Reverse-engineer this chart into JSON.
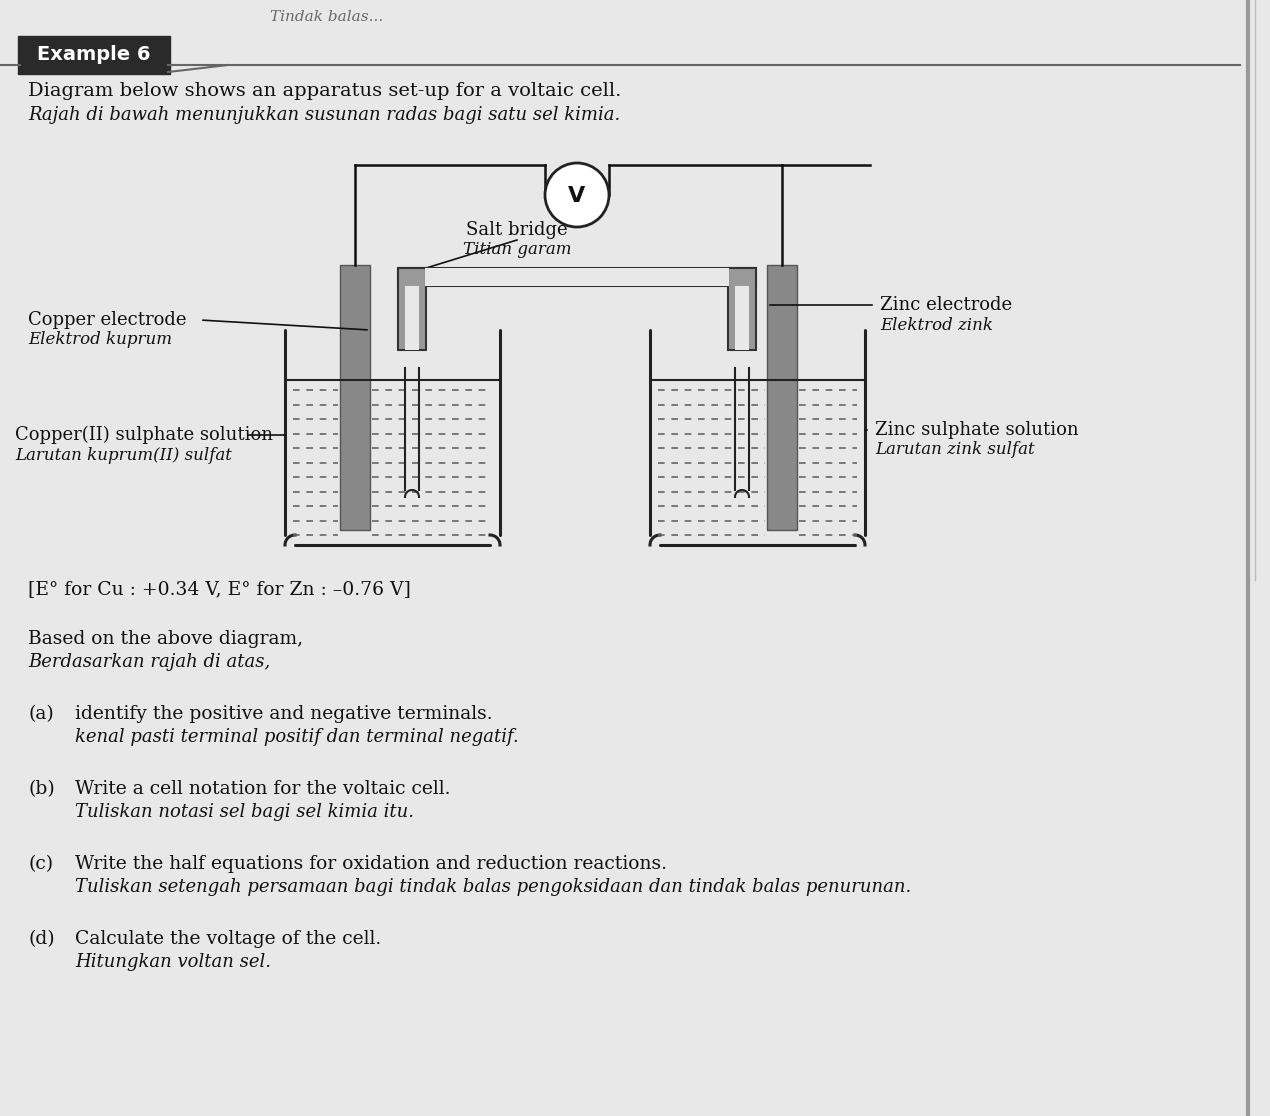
{
  "bg_color": "#e8e8e8",
  "page_bg": "#e0e0e0",
  "title_box_color": "#2a2a2a",
  "title_box_text": "Example 6",
  "title_box_text_color": "#ffffff",
  "line1_en": "Diagram below shows an apparatus set-up for a voltaic cell.",
  "line1_ms": "Rajah di bawah menunjukkan susunan radas bagi satu sel kimia.",
  "standard_note": "[E° for Cu : +0.34 V, E° for Zn : –0.76 V]",
  "based_en": "Based on the above diagram,",
  "based_ms": "Berdasarkan rajah di atas,",
  "qa_label": "(a)",
  "qa_en": "identify the positive and negative terminals.",
  "qa_ms": "kenal pasti terminal positif dan terminal negatif.",
  "qb_label": "(b)",
  "qb_en": "Write a cell notation for the voltaic cell.",
  "qb_ms": "Tuliskan notasi sel bagi sel kimia itu.",
  "qc_label": "(c)",
  "qc_en": "Write the half equations for oxidation and reduction reactions.",
  "qc_ms": "Tuliskan setengah persamaan bagi tindak balas pengoksidaan dan tindak balas penurunan.",
  "qd_label": "(d)",
  "qd_en": "Calculate the voltage of the cell.",
  "qd_ms": "Hitungkan voltan sel.",
  "voltmeter_label": "V",
  "salt_bridge_en": "Salt bridge",
  "salt_bridge_ms": "Titian garam",
  "copper_electrode_en": "Copper electrode",
  "copper_electrode_ms": "Elektrod kuprum",
  "zinc_electrode_en": "Zinc electrode",
  "zinc_electrode_ms": "Elektrod zink",
  "cu_solution_en": "Copper(II) sulphate solution",
  "cu_solution_ms": "Larutan kuprum(II) sulfat",
  "zn_solution_en": "Zinc sulphate solution",
  "zn_solution_ms": "Larutan zink sulfat",
  "electrode_color": "#888888",
  "beaker_color": "#222222",
  "wire_color": "#111111",
  "salt_bridge_fill": "#999999",
  "salt_bridge_edge": "#333333",
  "dashed_color": "#666666",
  "text_color": "#111111"
}
